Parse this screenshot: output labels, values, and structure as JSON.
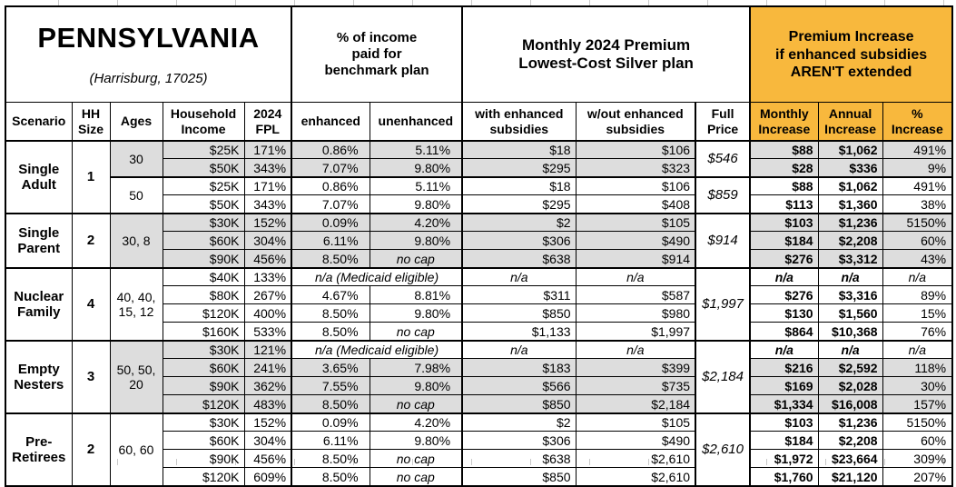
{
  "colors": {
    "accent_orange": "#F8B83D",
    "shade_gray": "#DDDDDD",
    "border_black": "#000000"
  },
  "header": {
    "state": "PENNSYLVANIA",
    "location": "(Harrisburg, 17025)",
    "group_income": "% of income\npaid for\nbenchmark plan",
    "group_premium": "Monthly 2024 Premium\nLowest-Cost Silver plan",
    "group_increase": "Premium Increase\nif enhanced subsidies\nAREN'T extended",
    "cols": {
      "scenario": "Scenario",
      "hh_size": "HH\nSize",
      "ages": "Ages",
      "income": "Household\nIncome",
      "fpl": "2024\nFPL",
      "enhanced": "enhanced",
      "unenhanced": "unenhanced",
      "with_sub": "with enhanced\nsubsidies",
      "wout_sub": "w/out enhanced\nsubsidies",
      "full_price": "Full\nPrice",
      "monthly": "Monthly\nIncrease",
      "annual": "Annual\nIncrease",
      "pct": "%\nIncrease"
    }
  },
  "groups": [
    {
      "scenario": "Single Adult",
      "hh_size": "1",
      "subgroups": [
        {
          "ages": "30",
          "shaded": true,
          "full_price": "$546",
          "rows": [
            {
              "income": "$25K",
              "fpl": "171%",
              "enhanced": "0.86%",
              "unenhanced": "5.11%",
              "with_sub": "$18",
              "wout_sub": "$106",
              "monthly": "$88",
              "annual": "$1,062",
              "pct": "491%"
            },
            {
              "income": "$50K",
              "fpl": "343%",
              "enhanced": "7.07%",
              "unenhanced": "9.80%",
              "with_sub": "$295",
              "wout_sub": "$323",
              "monthly": "$28",
              "annual": "$336",
              "pct": "9%"
            }
          ]
        },
        {
          "ages": "50",
          "shaded": false,
          "full_price": "$859",
          "rows": [
            {
              "income": "$25K",
              "fpl": "171%",
              "enhanced": "0.86%",
              "unenhanced": "5.11%",
              "with_sub": "$18",
              "wout_sub": "$106",
              "monthly": "$88",
              "annual": "$1,062",
              "pct": "491%"
            },
            {
              "income": "$50K",
              "fpl": "343%",
              "enhanced": "7.07%",
              "unenhanced": "9.80%",
              "with_sub": "$295",
              "wout_sub": "$408",
              "monthly": "$113",
              "annual": "$1,360",
              "pct": "38%"
            }
          ]
        }
      ]
    },
    {
      "scenario": "Single Parent",
      "hh_size": "2",
      "subgroups": [
        {
          "ages": "30, 8",
          "shaded": true,
          "full_price": "$914",
          "rows": [
            {
              "income": "$30K",
              "fpl": "152%",
              "enhanced": "0.09%",
              "unenhanced": "4.20%",
              "with_sub": "$2",
              "wout_sub": "$105",
              "monthly": "$103",
              "annual": "$1,236",
              "pct": "5150%"
            },
            {
              "income": "$60K",
              "fpl": "304%",
              "enhanced": "6.11%",
              "unenhanced": "9.80%",
              "with_sub": "$306",
              "wout_sub": "$490",
              "monthly": "$184",
              "annual": "$2,208",
              "pct": "60%"
            },
            {
              "income": "$90K",
              "fpl": "456%",
              "enhanced": "8.50%",
              "unenhanced": "no cap",
              "with_sub": "$638",
              "wout_sub": "$914",
              "monthly": "$276",
              "annual": "$3,312",
              "pct": "43%"
            }
          ]
        }
      ]
    },
    {
      "scenario": "Nuclear Family",
      "hh_size": "4",
      "subgroups": [
        {
          "ages": "40, 40, 15, 12",
          "shaded": false,
          "full_price": "$1,997",
          "rows": [
            {
              "income": "$40K",
              "fpl": "133%",
              "enhanced": "n/a (Medicaid eligible)",
              "unenhanced": "",
              "with_sub": "n/a",
              "wout_sub": "n/a",
              "monthly": "n/a",
              "annual": "n/a",
              "pct": "n/a"
            },
            {
              "income": "$80K",
              "fpl": "267%",
              "enhanced": "4.67%",
              "unenhanced": "8.81%",
              "with_sub": "$311",
              "wout_sub": "$587",
              "monthly": "$276",
              "annual": "$3,316",
              "pct": "89%"
            },
            {
              "income": "$120K",
              "fpl": "400%",
              "enhanced": "8.50%",
              "unenhanced": "9.80%",
              "with_sub": "$850",
              "wout_sub": "$980",
              "monthly": "$130",
              "annual": "$1,560",
              "pct": "15%"
            },
            {
              "income": "$160K",
              "fpl": "533%",
              "enhanced": "8.50%",
              "unenhanced": "no cap",
              "with_sub": "$1,133",
              "wout_sub": "$1,997",
              "monthly": "$864",
              "annual": "$10,368",
              "pct": "76%"
            }
          ]
        }
      ]
    },
    {
      "scenario": "Empty Nesters",
      "hh_size": "3",
      "subgroups": [
        {
          "ages": "50, 50, 20",
          "shaded": true,
          "full_price": "$2,184",
          "rows": [
            {
              "income": "$30K",
              "fpl": "121%",
              "enhanced": "n/a (Medicaid eligible)",
              "unenhanced": "",
              "with_sub": "n/a",
              "wout_sub": "n/a",
              "monthly": "n/a",
              "annual": "n/a",
              "pct": "n/a"
            },
            {
              "income": "$60K",
              "fpl": "241%",
              "enhanced": "3.65%",
              "unenhanced": "7.98%",
              "with_sub": "$183",
              "wout_sub": "$399",
              "monthly": "$216",
              "annual": "$2,592",
              "pct": "118%"
            },
            {
              "income": "$90K",
              "fpl": "362%",
              "enhanced": "7.55%",
              "unenhanced": "9.80%",
              "with_sub": "$566",
              "wout_sub": "$735",
              "monthly": "$169",
              "annual": "$2,028",
              "pct": "30%"
            },
            {
              "income": "$120K",
              "fpl": "483%",
              "enhanced": "8.50%",
              "unenhanced": "no cap",
              "with_sub": "$850",
              "wout_sub": "$2,184",
              "monthly": "$1,334",
              "annual": "$16,008",
              "pct": "157%"
            }
          ]
        }
      ]
    },
    {
      "scenario": "Pre-Retirees",
      "hh_size": "2",
      "subgroups": [
        {
          "ages": "60, 60",
          "shaded": false,
          "full_price": "$2,610",
          "rows": [
            {
              "income": "$30K",
              "fpl": "152%",
              "enhanced": "0.09%",
              "unenhanced": "4.20%",
              "with_sub": "$2",
              "wout_sub": "$105",
              "monthly": "$103",
              "annual": "$1,236",
              "pct": "5150%"
            },
            {
              "income": "$60K",
              "fpl": "304%",
              "enhanced": "6.11%",
              "unenhanced": "9.80%",
              "with_sub": "$306",
              "wout_sub": "$490",
              "monthly": "$184",
              "annual": "$2,208",
              "pct": "60%"
            },
            {
              "income": "$90K",
              "fpl": "456%",
              "enhanced": "8.50%",
              "unenhanced": "no cap",
              "with_sub": "$638",
              "wout_sub": "$2,610",
              "monthly": "$1,972",
              "annual": "$23,664",
              "pct": "309%"
            },
            {
              "income": "$120K",
              "fpl": "609%",
              "enhanced": "8.50%",
              "unenhanced": "no cap",
              "with_sub": "$850",
              "wout_sub": "$2,610",
              "monthly": "$1,760",
              "annual": "$21,120",
              "pct": "207%"
            }
          ]
        }
      ]
    }
  ]
}
